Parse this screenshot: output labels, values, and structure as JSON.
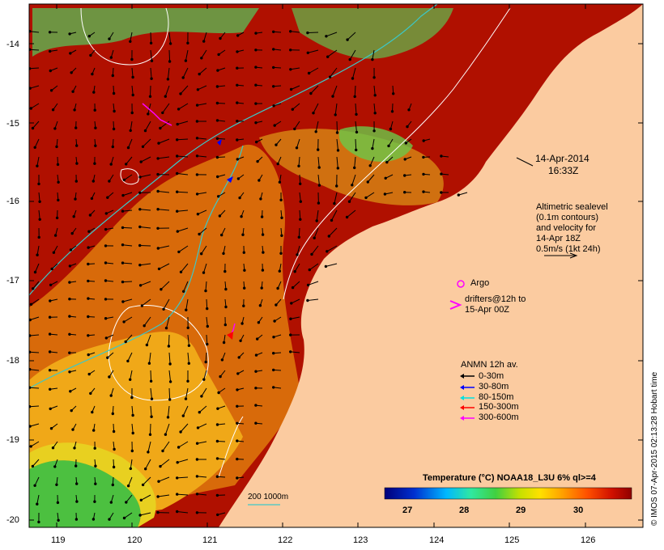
{
  "timestamp": {
    "date": "14-Apr-2014",
    "time": "16:33Z"
  },
  "altimetry_note": [
    "Altimetric sealevel",
    "(0.1m contours)",
    "and velocity for",
    "14-Apr 18Z",
    "0.5m/s (1kt 24h)"
  ],
  "argo_label": "Argo",
  "drifters_label": [
    "drifters@12h to",
    "15-Apr 00Z"
  ],
  "anmn": {
    "title": "ANMN 12h av.",
    "items": [
      {
        "label": "0-30m",
        "color": "#000000"
      },
      {
        "label": "30-80m",
        "color": "#0000ff"
      },
      {
        "label": "80-150m",
        "color": "#00e0e0"
      },
      {
        "label": "150-300m",
        "color": "#ff0000"
      },
      {
        "label": "300-600m",
        "color": "#ff00ff"
      }
    ]
  },
  "colorbar": {
    "title": "Temperature (°C) NOAA18_L3U 6% ql>=4",
    "ticks": [
      "27",
      "28",
      "29",
      "30"
    ]
  },
  "isobath_label": "200  1000m",
  "lat_ticks": [
    "-14",
    "-15",
    "-16",
    "-17",
    "-18",
    "-19",
    "-20"
  ],
  "lon_ticks": [
    "119",
    "120",
    "121",
    "122",
    "123",
    "124",
    "125",
    "126"
  ],
  "credit": "© IMOS 07-Apr-2015 02:13:28 Hobart time",
  "colors": {
    "land": "#fbcba0",
    "sea_warm": "#b01000",
    "contour": "#ffffff",
    "isobath": "#3cc8c8"
  }
}
